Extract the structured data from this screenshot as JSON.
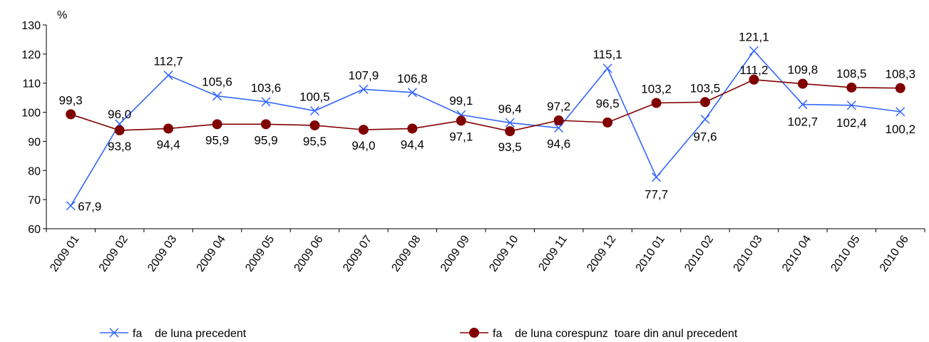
{
  "chart_data": {
    "type": "line",
    "unit_label": "%",
    "categories": [
      "2009 01",
      "2009 02",
      "2009 03",
      "2009 04",
      "2009 05",
      "2009 06",
      "2009 07",
      "2009 08",
      "2009 09",
      "2009 10",
      "2009 11",
      "2009 12",
      "2010 01",
      "2010 02",
      "2010 03",
      "2010 04",
      "2010 05",
      "2010 06"
    ],
    "ylim": [
      60,
      130
    ],
    "yticks": [
      60,
      70,
      80,
      90,
      100,
      110,
      120,
      130
    ],
    "grid": false,
    "legend_position": "bottom",
    "series": [
      {
        "name": "fa    de luna precedent",
        "color": "#3366ff",
        "marker": "x-icon",
        "values": [
          67.9,
          96.0,
          112.7,
          105.6,
          103.6,
          100.5,
          107.9,
          106.8,
          99.1,
          96.4,
          94.6,
          115.1,
          77.7,
          97.6,
          121.1,
          102.7,
          102.4,
          100.2
        ],
        "labels": [
          "67,9",
          "96,0",
          "112,7",
          "105,6",
          "103,6",
          "100,5",
          "107,9",
          "106,8",
          "99,1",
          "96,4",
          "94,6",
          "115,1",
          "77,7",
          "97,6",
          "121,1",
          "102,7",
          "102,4",
          "100,2"
        ]
      },
      {
        "name": "fa    de luna corespunz  toare din anul precedent",
        "color": "#800000",
        "marker": "circle-icon",
        "values": [
          99.3,
          93.8,
          94.4,
          95.9,
          95.9,
          95.5,
          94.0,
          94.4,
          97.1,
          93.5,
          97.2,
          96.5,
          103.2,
          103.5,
          111.2,
          109.8,
          108.5,
          108.3
        ],
        "labels": [
          "99,3",
          "93,8",
          "94,4",
          "95,9",
          "95,9",
          "95,5",
          "94,0",
          "94,4",
          "97,1",
          "93,5",
          "97,2",
          "96,5",
          "103,2",
          "103,5",
          "111,2",
          "109,8",
          "108,5",
          "108,3"
        ]
      }
    ]
  }
}
